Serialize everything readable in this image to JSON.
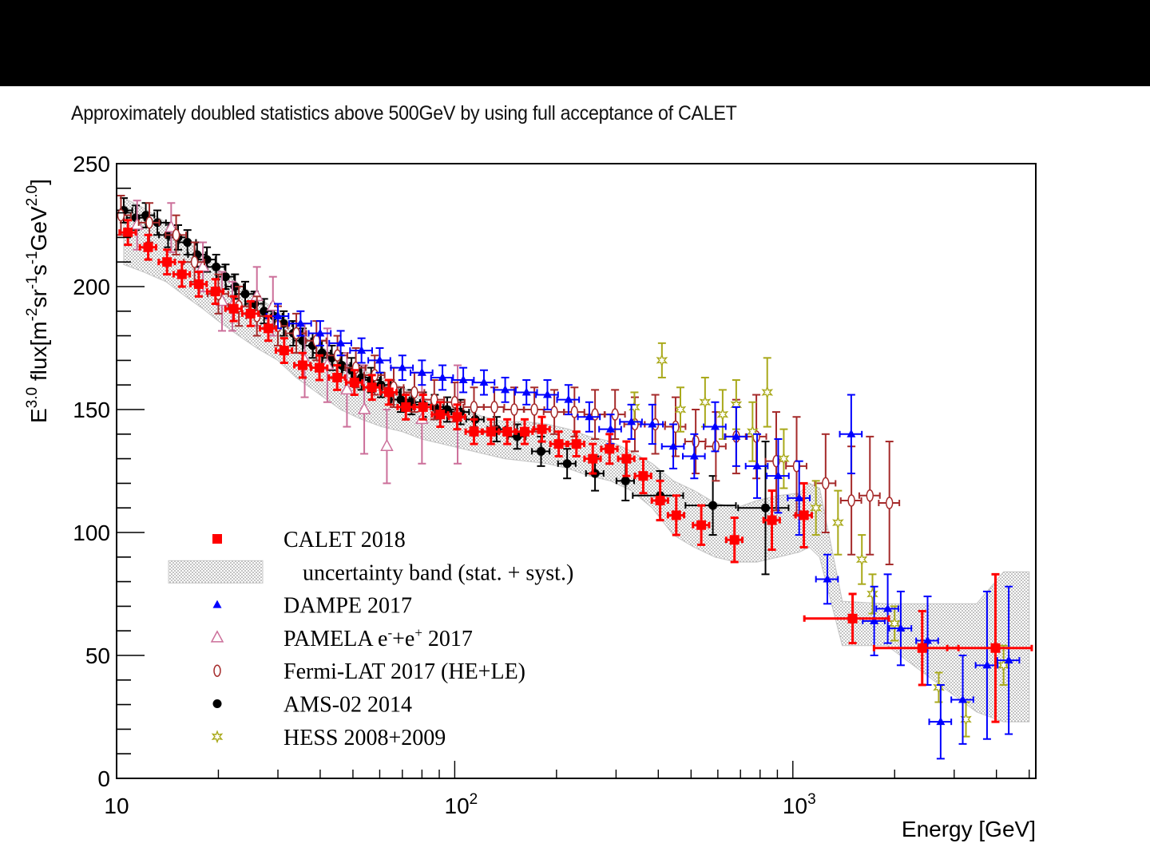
{
  "slide": {
    "subtitle": "Approximately doubled statistics above 500GeV by using full acceptance of CALET"
  },
  "chart_data": {
    "type": "scatter",
    "title": "",
    "xlabel": "Energy [GeV]",
    "ylabel": "E^3.0 flux[m^-2 sr^-1 s^-1 GeV^2.0]",
    "ylabel_parts": {
      "base": "E",
      "exp": "3.0",
      "text": " flux[m",
      "m_exp": "-2",
      "sr": "sr",
      "sr_exp": "-1",
      "s": "s",
      "s_exp": "-1",
      "gev": "GeV",
      "gev_exp": "2.0",
      "close": "]"
    },
    "x_scale": "log",
    "xlim": [
      10,
      5230
    ],
    "ylim": [
      0,
      250
    ],
    "x_ticks": [
      {
        "value": 10,
        "label": "10",
        "exp": ""
      },
      {
        "value": 100,
        "label": "10",
        "exp": "2"
      },
      {
        "value": 1000,
        "label": "10",
        "exp": "3"
      }
    ],
    "y_ticks": [
      {
        "value": 0,
        "label": "0"
      },
      {
        "value": 50,
        "label": "50"
      },
      {
        "value": 100,
        "label": "100"
      },
      {
        "value": 150,
        "label": "150"
      },
      {
        "value": 200,
        "label": "200"
      },
      {
        "value": 250,
        "label": "250"
      }
    ],
    "grid": false,
    "legend_position": "bottom-left",
    "legend": [
      {
        "key": "calet",
        "label": "CALET 2018",
        "sup": "",
        "label2": ""
      },
      {
        "key": "band",
        "label": "uncertainty band (stat. + syst.)",
        "sup": "",
        "label2": ""
      },
      {
        "key": "dampe",
        "label": "DAMPE 2017",
        "sup": "",
        "label2": ""
      },
      {
        "key": "pamela",
        "label": "PAMELA e",
        "sup": "-",
        "label2": "+e",
        "sup2": "+",
        "label3": " 2017"
      },
      {
        "key": "fermi",
        "label": "Fermi-LAT 2017 (HE+LE)",
        "sup": "",
        "label2": ""
      },
      {
        "key": "ams",
        "label": "AMS-02 2014",
        "sup": "",
        "label2": ""
      },
      {
        "key": "hess",
        "label": "HESS 2008+2009",
        "sup": "",
        "label2": ""
      }
    ],
    "colors": {
      "calet": "#ff0000",
      "band": "#9a9a9a",
      "dampe": "#0000ff",
      "pamela": "#cc6f9a",
      "fermi": "#a52a2a",
      "ams": "#000000",
      "hess": "#a9a91a"
    },
    "band": {
      "name": "uncertainty band (stat. + syst.)",
      "x": [
        10.5,
        12,
        14,
        16,
        18,
        20,
        23,
        26,
        30,
        34,
        40,
        46,
        53,
        61,
        70,
        80,
        92,
        106,
        122,
        141,
        163,
        188,
        217,
        250,
        289,
        333,
        384,
        443,
        511,
        589,
        680,
        784,
        905,
        1044,
        1120,
        1200,
        1400,
        1900,
        2600,
        3500,
        4200,
        5000
      ],
      "upper": [
        236,
        232,
        226,
        219,
        213,
        207,
        201,
        196,
        190,
        183,
        176,
        170,
        166,
        163,
        159,
        155,
        152,
        150,
        147,
        145,
        145,
        144,
        142,
        139,
        137,
        133,
        128,
        121,
        117,
        112,
        110,
        113,
        115,
        116,
        120,
        118,
        72,
        71,
        71,
        71,
        84,
        84
      ],
      "lower": [
        209,
        206,
        202,
        196,
        191,
        186,
        180,
        175,
        170,
        163,
        156,
        150,
        146,
        143,
        141,
        138,
        136,
        134,
        132,
        130,
        129,
        128,
        126,
        123,
        121,
        117,
        110,
        99,
        94,
        90,
        88,
        88,
        90,
        92,
        94,
        90,
        54,
        54,
        40,
        27,
        23,
        23
      ]
    },
    "series": [
      {
        "name": "CALET 2018",
        "key": "calet",
        "marker": "square-filled",
        "points": [
          [
            10.8,
            222,
            5
          ],
          [
            12.4,
            216,
            5
          ],
          [
            14.1,
            210,
            5
          ],
          [
            15.6,
            205,
            5
          ],
          [
            17.5,
            201,
            5
          ],
          [
            19.6,
            198,
            5
          ],
          [
            22.2,
            191,
            5
          ],
          [
            24.9,
            189,
            5
          ],
          [
            28.1,
            183,
            5
          ],
          [
            31.3,
            174,
            5
          ],
          [
            35.5,
            168,
            5
          ],
          [
            39.8,
            167,
            5
          ],
          [
            44.9,
            163,
            5
          ],
          [
            50.5,
            161,
            5
          ],
          [
            56.9,
            159,
            5
          ],
          [
            63.8,
            157,
            5
          ],
          [
            71.7,
            151,
            5
          ],
          [
            80.6,
            151,
            5
          ],
          [
            90.6,
            148,
            5
          ],
          [
            101.7,
            147,
            5
          ],
          [
            114,
            141,
            5
          ],
          [
            128,
            141,
            5
          ],
          [
            143,
            141,
            5
          ],
          [
            161,
            141,
            5
          ],
          [
            181,
            142,
            5
          ],
          [
            203,
            136,
            5
          ],
          [
            229,
            136,
            5
          ],
          [
            256,
            130,
            6
          ],
          [
            287,
            134,
            6
          ],
          [
            322,
            130,
            7
          ],
          [
            361,
            123,
            7
          ],
          [
            405,
            113,
            8
          ],
          [
            452,
            107,
            8
          ],
          [
            536,
            103,
            8
          ],
          [
            672,
            97,
            9
          ],
          [
            867,
            105,
            12
          ],
          [
            1078,
            107,
            13
          ],
          [
            1502,
            65,
            10
          ],
          [
            2413,
            53,
            15
          ],
          [
            3974,
            53,
            30
          ]
        ],
        "xerr_frac": 0.055
      },
      {
        "name": "DAMPE 2017",
        "key": "dampe",
        "marker": "triangle-filled",
        "points": [
          [
            30,
            188,
            5
          ],
          [
            35,
            185,
            5
          ],
          [
            40,
            181,
            5
          ],
          [
            46,
            177,
            5
          ],
          [
            53,
            174,
            5
          ],
          [
            60,
            170,
            5
          ],
          [
            70,
            167,
            5
          ],
          [
            80,
            165,
            5
          ],
          [
            92,
            163,
            5
          ],
          [
            106,
            162,
            5
          ],
          [
            122,
            161,
            5
          ],
          [
            141,
            158,
            5
          ],
          [
            163,
            157,
            5
          ],
          [
            188,
            156,
            6
          ],
          [
            217,
            154,
            6
          ],
          [
            250,
            147,
            6
          ],
          [
            289,
            142,
            6
          ],
          [
            333,
            145,
            7
          ],
          [
            384,
            144,
            8
          ],
          [
            443,
            135,
            9
          ],
          [
            511,
            131,
            9
          ],
          [
            589,
            143,
            10
          ],
          [
            680,
            139,
            12
          ],
          [
            784,
            127,
            13
          ],
          [
            905,
            123,
            15
          ],
          [
            1044,
            114,
            15
          ],
          [
            1265,
            81,
            10
          ],
          [
            1488,
            140,
            16
          ],
          [
            1740,
            64,
            14
          ],
          [
            1908,
            69,
            14
          ],
          [
            2085,
            61,
            15
          ],
          [
            2503,
            56,
            18
          ],
          [
            2736,
            23,
            15
          ],
          [
            3180,
            32,
            18
          ],
          [
            3752,
            46,
            30
          ],
          [
            4350,
            48,
            30
          ]
        ],
        "xerr_frac": 0.075
      },
      {
        "name": "PAMELA e-+e+ 2017",
        "key": "pamela",
        "marker": "triangle-open",
        "points": [
          [
            11.5,
            225,
            10
          ],
          [
            14.5,
            224,
            10
          ],
          [
            18,
            208,
            10
          ],
          [
            20.5,
            194,
            12
          ],
          [
            22,
            192,
            10
          ],
          [
            26,
            196,
            12
          ],
          [
            29,
            192,
            12
          ],
          [
            36,
            170,
            15
          ],
          [
            42,
            168,
            15
          ],
          [
            48,
            158,
            15
          ],
          [
            54,
            150,
            18
          ],
          [
            63,
            135,
            15
          ],
          [
            80,
            146,
            18
          ],
          [
            102,
            148,
            20
          ]
        ],
        "xerr_frac": 0
      },
      {
        "name": "Fermi-LAT 2017 (HE+LE)",
        "key": "fermi",
        "marker": "diamond-open",
        "points": [
          [
            10.3,
            229,
            8
          ],
          [
            12.5,
            226,
            8
          ],
          [
            15,
            221,
            8
          ],
          [
            17,
            210,
            8
          ],
          [
            20,
            197,
            8
          ],
          [
            23,
            192,
            8
          ],
          [
            26,
            188,
            8
          ],
          [
            30,
            184,
            8
          ],
          [
            34,
            181,
            8
          ],
          [
            39,
            178,
            8
          ],
          [
            45,
            172,
            8
          ],
          [
            51,
            167,
            8
          ],
          [
            58,
            164,
            8
          ],
          [
            66,
            159,
            8
          ],
          [
            76,
            157,
            8
          ],
          [
            87,
            154,
            8
          ],
          [
            100,
            153,
            8
          ],
          [
            114,
            151,
            8
          ],
          [
            131,
            151,
            8
          ],
          [
            150,
            150,
            9
          ],
          [
            172,
            150,
            9
          ],
          [
            197,
            149,
            9
          ],
          [
            226,
            149,
            10
          ],
          [
            260,
            148,
            10
          ],
          [
            298,
            148,
            10
          ],
          [
            341,
            144,
            11
          ],
          [
            392,
            144,
            12
          ],
          [
            450,
            143,
            12
          ],
          [
            516,
            137,
            13
          ],
          [
            592,
            135,
            14
          ],
          [
            680,
            139,
            15
          ],
          [
            780,
            139,
            17
          ],
          [
            893,
            129,
            20
          ],
          [
            1026,
            127,
            20
          ],
          [
            1250,
            120,
            20
          ],
          [
            1490,
            113,
            22
          ],
          [
            1690,
            115,
            24
          ],
          [
            1930,
            112,
            25
          ]
        ],
        "xerr_frac": 0.07
      },
      {
        "name": "AMS-02 2014",
        "key": "ams",
        "marker": "circle-filled",
        "points": [
          [
            10.5,
            231,
            5
          ],
          [
            11.4,
            228,
            5
          ],
          [
            12.2,
            229,
            5
          ],
          [
            13.2,
            226,
            5
          ],
          [
            14.2,
            221,
            5
          ],
          [
            15.2,
            220,
            5
          ],
          [
            16.2,
            218,
            5
          ],
          [
            17.3,
            213,
            5
          ],
          [
            18.5,
            211,
            5
          ],
          [
            19.7,
            208,
            5
          ],
          [
            21,
            204,
            5
          ],
          [
            22.4,
            200,
            5
          ],
          [
            24,
            197,
            5
          ],
          [
            25.6,
            193,
            5
          ],
          [
            27.3,
            190,
            5
          ],
          [
            29.2,
            188,
            5
          ],
          [
            31.2,
            185,
            5
          ],
          [
            33.3,
            181,
            5
          ],
          [
            35.5,
            178,
            5
          ],
          [
            38,
            176,
            5
          ],
          [
            40.5,
            173,
            5
          ],
          [
            43.3,
            171,
            5
          ],
          [
            46.3,
            168,
            5
          ],
          [
            49.5,
            166,
            5
          ],
          [
            53,
            163,
            5
          ],
          [
            56.6,
            162,
            5
          ],
          [
            60.5,
            160,
            5
          ],
          [
            64.7,
            157,
            5
          ],
          [
            69.3,
            154,
            5
          ],
          [
            74.5,
            153,
            5
          ],
          [
            80.5,
            152,
            5
          ],
          [
            87.3,
            151,
            5
          ],
          [
            95,
            150,
            5
          ],
          [
            104,
            149,
            5
          ],
          [
            115,
            146,
            5
          ],
          [
            133,
            142,
            5
          ],
          [
            153,
            139,
            5
          ],
          [
            180,
            133,
            6
          ],
          [
            215,
            128,
            6
          ],
          [
            260,
            124,
            7
          ],
          [
            320,
            121,
            8
          ],
          [
            405,
            115,
            10
          ],
          [
            580,
            111,
            12
          ],
          [
            830,
            110,
            27
          ]
        ],
        "xerr_frac": 0.06
      },
      {
        "name": "HESS 2008+2009",
        "key": "hess",
        "marker": "star-open",
        "points": [
          [
            340,
            151,
            6
          ],
          [
            410,
            170,
            7
          ],
          [
            465,
            150,
            9
          ],
          [
            550,
            153,
            10
          ],
          [
            620,
            148,
            10
          ],
          [
            680,
            152,
            10
          ],
          [
            760,
            141,
            12
          ],
          [
            840,
            157,
            14
          ],
          [
            940,
            130,
            12
          ],
          [
            1170,
            110,
            11
          ],
          [
            1360,
            104,
            13
          ],
          [
            1600,
            89,
            10
          ],
          [
            1720,
            75,
            8
          ],
          [
            2000,
            63,
            7
          ],
          [
            2700,
            37,
            6
          ],
          [
            3250,
            24,
            7
          ],
          [
            4200,
            46,
            8
          ]
        ],
        "xerr_frac": 0
      }
    ]
  }
}
